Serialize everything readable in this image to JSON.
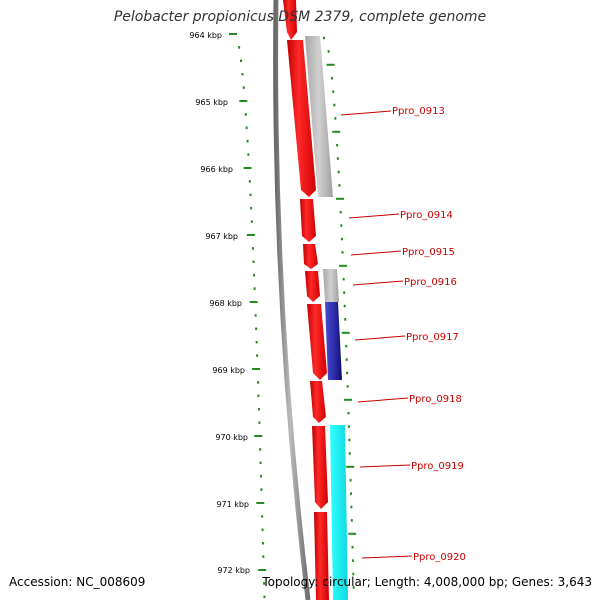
{
  "title": "Pelobacter propionicus DSM 2379, complete genome",
  "footer": {
    "accession": "Accession: NC_008609",
    "topology": "Topology: circular; Length: 4,008,000 bp; Genes: 3,643"
  },
  "axis_ticks": [
    "964 kbp",
    "965 kbp",
    "966 kbp",
    "967 kbp",
    "968 kbp",
    "969 kbp",
    "970 kbp",
    "971 kbp",
    "972 kbp"
  ],
  "gene_labels": [
    "Ppro_0913",
    "Ppro_0914",
    "Ppro_0915",
    "Ppro_0916",
    "Ppro_0917",
    "Ppro_0918",
    "Ppro_0919",
    "Ppro_0920"
  ],
  "colors": {
    "backbone": "#8a8a8a",
    "gene_red": "#ee0000",
    "cog_gray": "#bdbdbd",
    "cog_blue": "#3030b0",
    "cog_cyan": "#20f0f0",
    "ticks_green": "#228B22",
    "label_red": "#cc0000"
  }
}
